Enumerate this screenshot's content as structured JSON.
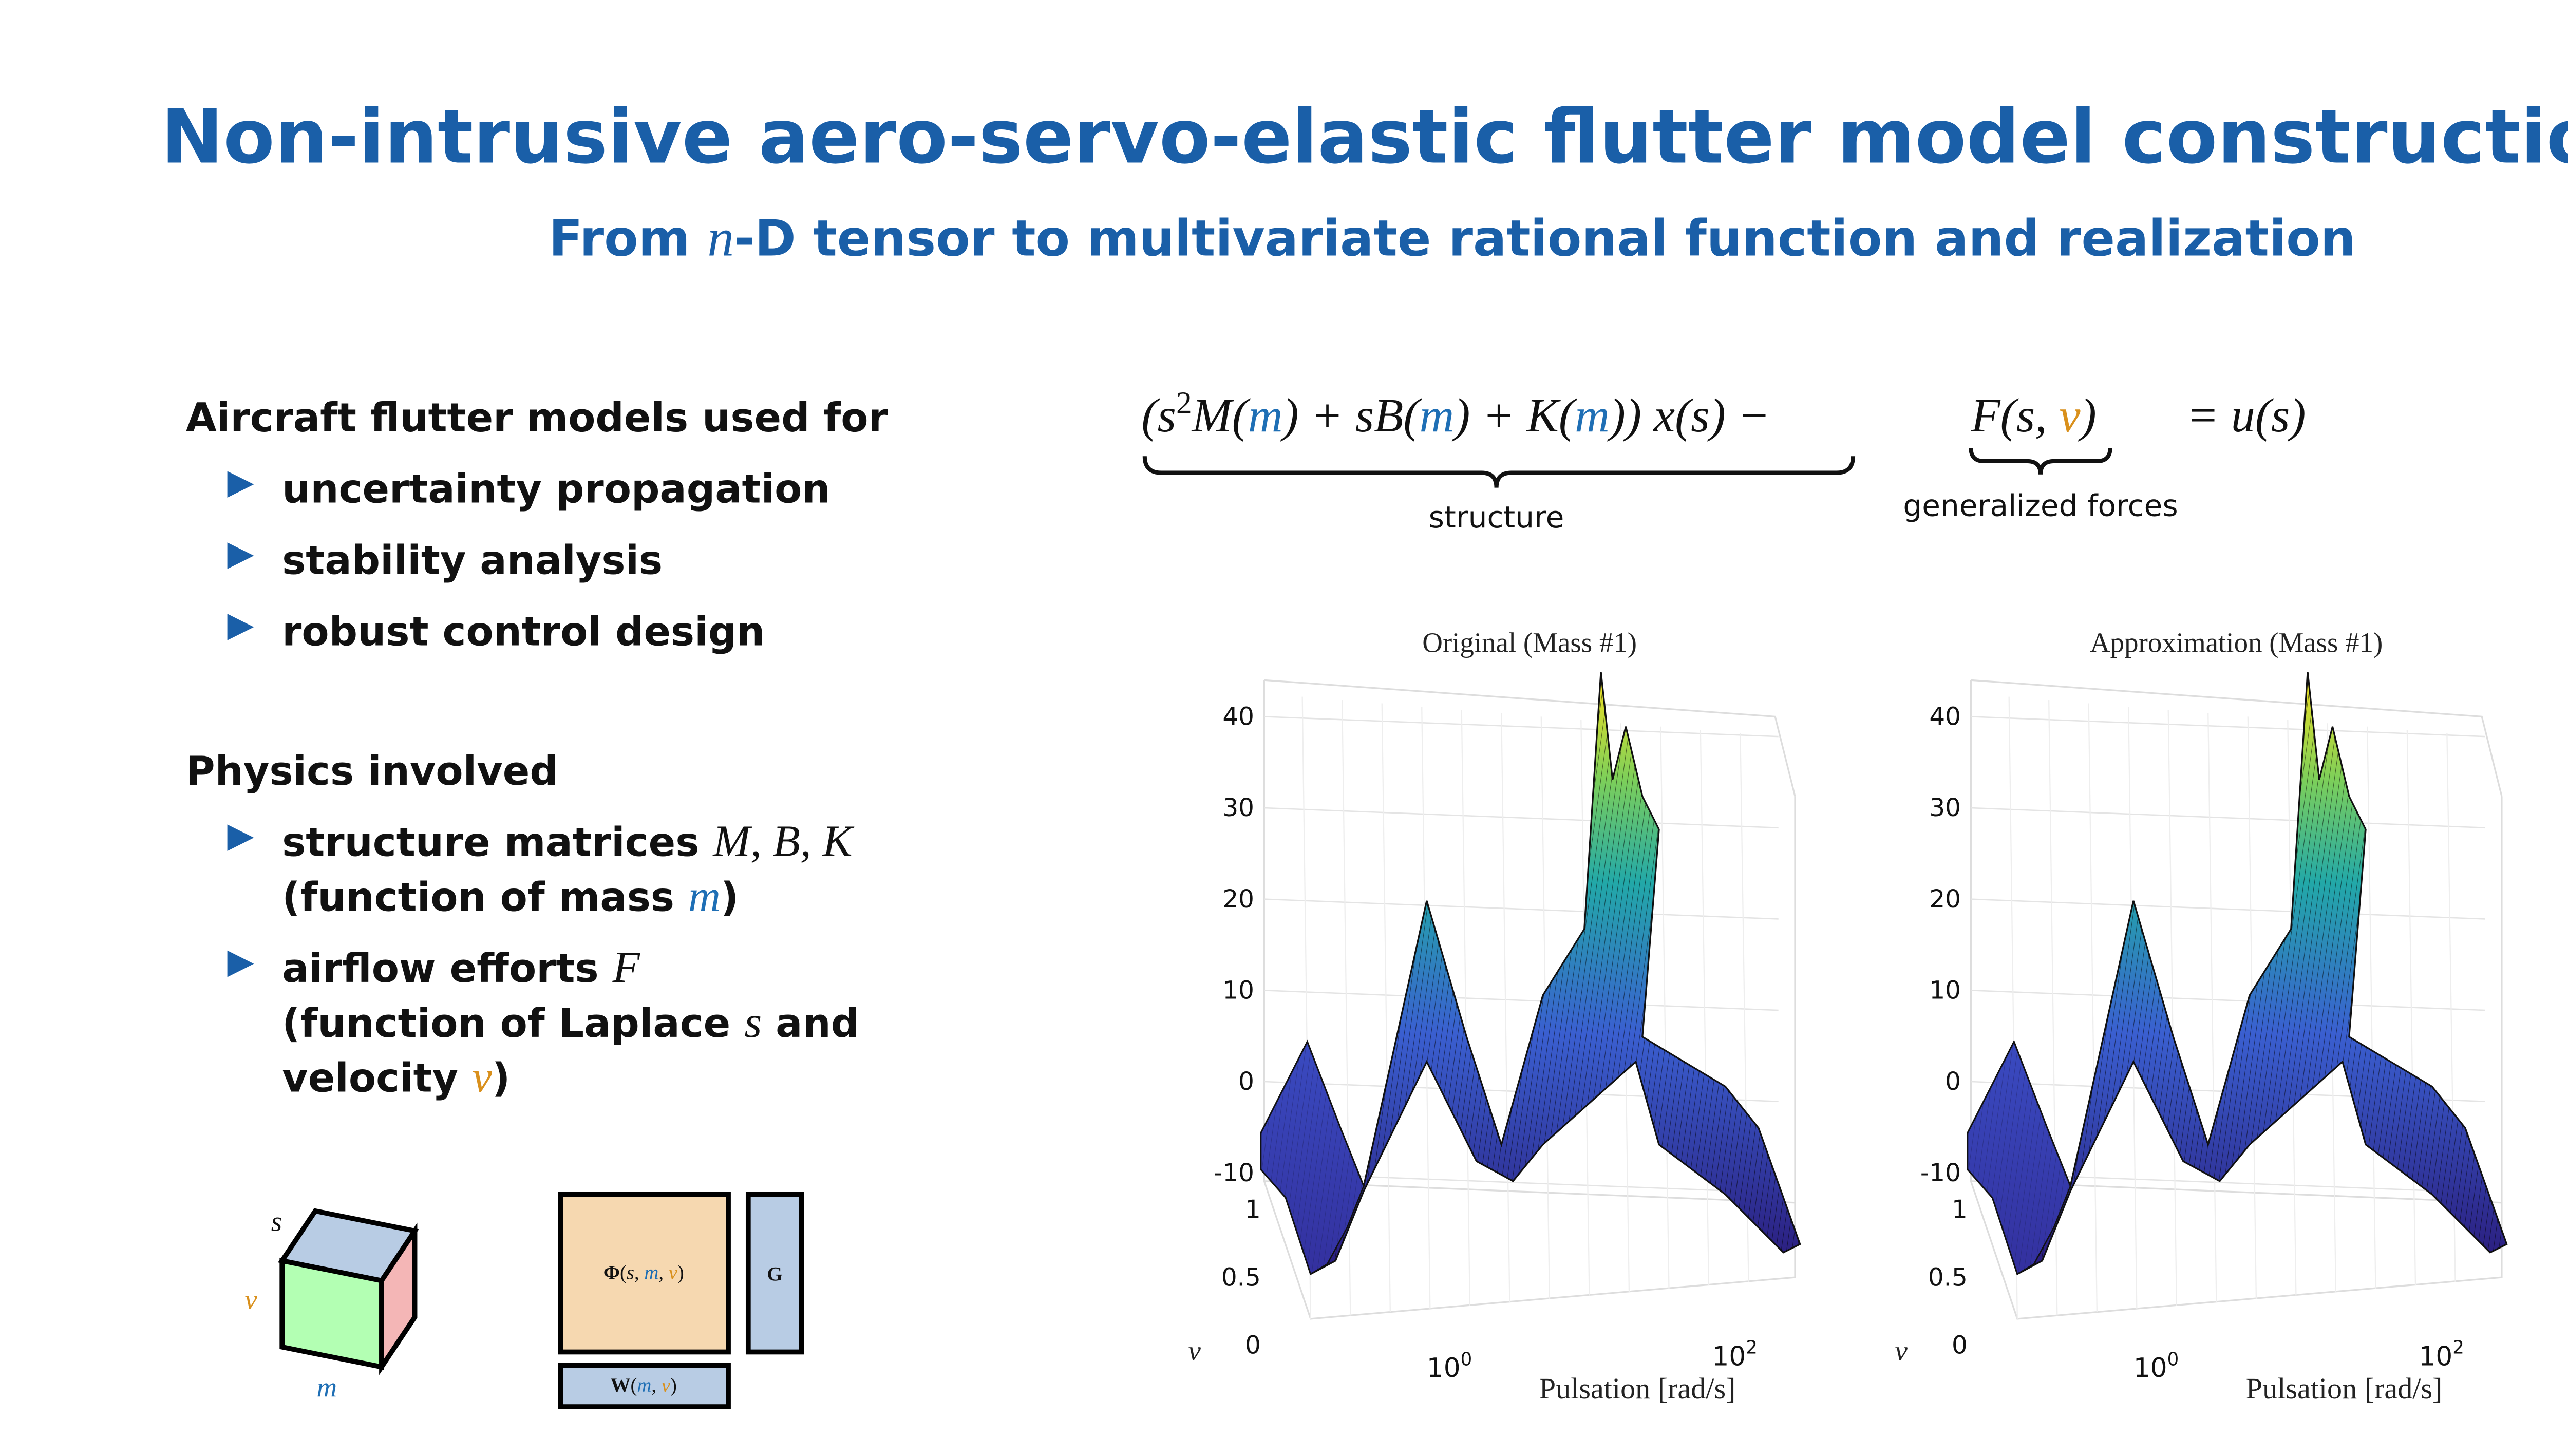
{
  "header": {
    "title": "Non-intrusive aero-servo-elastic flutter model construction",
    "subtitle": {
      "before": "From ",
      "math": "n",
      "after": "-D tensor to multivariate rational function and realization"
    }
  },
  "uses": {
    "heading": "Aircraft flutter models used for",
    "items": [
      "uncertainty propagation",
      "stability analysis",
      "robust control design"
    ]
  },
  "physics": {
    "heading": "Physics involved",
    "items": [
      {
        "lines": [
          [
            "structure matrices ",
            "M, B, K"
          ],
          [
            "(function of mass ",
            "m",
            ")"
          ]
        ]
      },
      {
        "lines": [
          [
            "airflow efforts ",
            "F"
          ],
          [
            "(function of Laplace ",
            "s",
            " and"
          ],
          [
            "velocity ",
            "v",
            ")"
          ]
        ]
      }
    ]
  },
  "equation": {
    "structure_parts": [
      "(s",
      "2",
      "M(",
      "m",
      ") + sB(",
      "m",
      ") + K(",
      "m",
      ")) x(s) −"
    ],
    "forces_parts": [
      "F(s, ",
      "v",
      ")"
    ],
    "rhs": "= u(s)",
    "structure_label": "structure",
    "forces_label": "generalized forces"
  },
  "plots": [
    {
      "title": "Original (Mass #1)",
      "z_ticks": [
        40,
        30,
        20,
        10,
        0,
        -10
      ],
      "v_ticks": [
        1,
        0.5,
        0
      ],
      "x_ticks": [
        {
          "base": "10",
          "exp": "0"
        },
        {
          "base": "10",
          "exp": "2"
        }
      ],
      "v_label": "v",
      "x_label": "Pulsation [rad/s]"
    },
    {
      "title": "Approximation (Mass #1)",
      "z_ticks": [
        40,
        30,
        20,
        10,
        0,
        -10
      ],
      "v_ticks": [
        1,
        0.5,
        0
      ],
      "x_ticks": [
        {
          "base": "10",
          "exp": "0"
        },
        {
          "base": "10",
          "exp": "2"
        }
      ],
      "v_label": "v",
      "x_label": "Pulsation [rad/s]"
    }
  ],
  "diagram": {
    "cube": {
      "s": "s",
      "v": "v",
      "m": "m"
    },
    "phi": [
      "Φ",
      "(",
      "s",
      ", ",
      "m",
      ", ",
      "v",
      ")"
    ],
    "g": "G",
    "w": [
      "W",
      "(",
      "m",
      ", ",
      "v",
      ")"
    ]
  }
}
